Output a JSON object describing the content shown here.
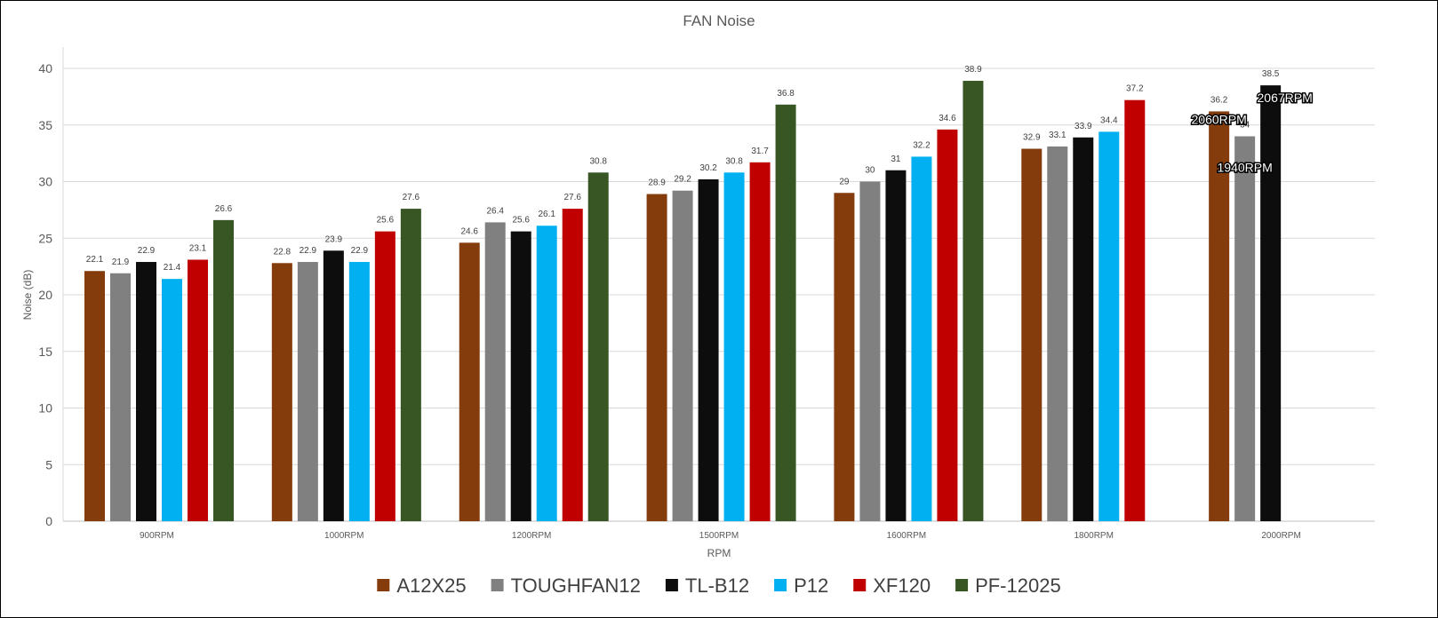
{
  "chart_data": {
    "type": "bar",
    "title": "FAN Noise",
    "xlabel": "RPM",
    "ylabel": "Noise (dB)",
    "ylim": [
      0,
      40
    ],
    "yticks": [
      0,
      5,
      10,
      15,
      20,
      25,
      30,
      35,
      40
    ],
    "grid": true,
    "legend_position": "bottom",
    "categories": [
      "900RPM",
      "1000RPM",
      "1200RPM",
      "1500RPM",
      "1600RPM",
      "1800RPM",
      "2000RPM"
    ],
    "series": [
      {
        "name": "A12X25",
        "color": "#843c0c",
        "values": [
          22.1,
          22.8,
          24.6,
          28.9,
          29,
          32.9,
          36.2
        ],
        "labels": [
          "22.1",
          "22.8",
          "24.6",
          "28.9",
          "29",
          "32.9",
          "36.2"
        ]
      },
      {
        "name": "TOUGHFAN12",
        "color": "#808080",
        "values": [
          21.9,
          22.9,
          26.4,
          29.2,
          30,
          33.1,
          34
        ],
        "labels": [
          "21.9",
          "22.9",
          "26.4",
          "29.2",
          "30",
          "33.1",
          "34"
        ]
      },
      {
        "name": "TL-B12",
        "color": "#0d0d0d",
        "values": [
          22.9,
          23.9,
          25.6,
          30.2,
          31,
          33.9,
          38.5
        ],
        "labels": [
          "22.9",
          "23.9",
          "25.6",
          "30.2",
          "31",
          "33.9",
          "38.5"
        ]
      },
      {
        "name": "P12",
        "color": "#00b0f0",
        "values": [
          21.4,
          22.9,
          26.1,
          30.8,
          32.2,
          34.4,
          null
        ],
        "labels": [
          "21.4",
          "22.9",
          "26.1",
          "30.8",
          "32.2",
          "34.4",
          ""
        ]
      },
      {
        "name": "XF120",
        "color": "#c00000",
        "values": [
          23.1,
          25.6,
          27.6,
          31.7,
          34.6,
          37.2,
          null
        ],
        "labels": [
          "23.1",
          "25.6",
          "27.6",
          "31.7",
          "34.6",
          "37.2",
          ""
        ]
      },
      {
        "name": "PF-12025",
        "color": "#375623",
        "values": [
          26.6,
          27.6,
          30.8,
          36.8,
          38.9,
          null,
          null
        ],
        "labels": [
          "26.6",
          "27.6",
          "30.8",
          "36.8",
          "38.9",
          "",
          ""
        ]
      }
    ],
    "annotations": [
      {
        "text": "2060RPM",
        "category": "2000RPM",
        "series": "A12X25"
      },
      {
        "text": "1940RPM",
        "category": "2000RPM",
        "series": "TOUGHFAN12"
      },
      {
        "text": "2067RPM",
        "category": "2000RPM",
        "series": "TL-B12"
      }
    ]
  }
}
